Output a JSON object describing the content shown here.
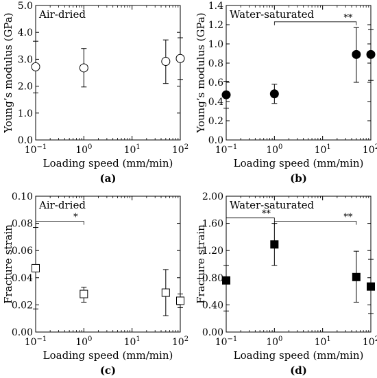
{
  "chart_data": [
    {
      "type": "scatter",
      "panel_label": "(a)",
      "annotation": "Air-dried",
      "xlabel": "Loading speed (mm/min)",
      "ylabel": "Young’s modulus (GPa)",
      "xscale": "log",
      "xlim": [
        0.1,
        100
      ],
      "xticks": [
        {
          "value": 0.1,
          "base": "10",
          "exp": "−1"
        },
        {
          "value": 1,
          "base": "10",
          "exp": "0"
        },
        {
          "value": 10,
          "base": "10",
          "exp": "1"
        },
        {
          "value": 100,
          "base": "10",
          "exp": "2"
        }
      ],
      "ylim": [
        0,
        5
      ],
      "yticks": [
        {
          "value": 0,
          "label": "0.0"
        },
        {
          "value": 1,
          "label": "1.0"
        },
        {
          "value": 2,
          "label": "2.0"
        },
        {
          "value": 3,
          "label": "3.0"
        },
        {
          "value": 4,
          "label": "4.0"
        },
        {
          "value": 5,
          "label": "5.0"
        }
      ],
      "marker": "circle",
      "filled": false,
      "points": [
        {
          "x": 0.1,
          "y": 2.72,
          "low": 1.75,
          "high": 3.67
        },
        {
          "x": 1,
          "y": 2.68,
          "low": 1.97,
          "high": 3.4
        },
        {
          "x": 50,
          "y": 2.92,
          "low": 2.1,
          "high": 3.72
        },
        {
          "x": 100,
          "y": 3.03,
          "low": 2.25,
          "high": 3.8
        }
      ],
      "significance": []
    },
    {
      "type": "scatter",
      "panel_label": "(b)",
      "annotation": "Water-saturated",
      "xlabel": "Loading speed (mm/min)",
      "ylabel": "Young’s modulus (GPa)",
      "xscale": "log",
      "xlim": [
        0.1,
        100
      ],
      "xticks": [
        {
          "value": 0.1,
          "base": "10",
          "exp": "−1"
        },
        {
          "value": 1,
          "base": "10",
          "exp": "0"
        },
        {
          "value": 10,
          "base": "10",
          "exp": "1"
        },
        {
          "value": 100,
          "base": "10",
          "exp": "2"
        }
      ],
      "ylim": [
        0,
        1.4
      ],
      "yticks": [
        {
          "value": 0,
          "label": "0.0"
        },
        {
          "value": 0.2,
          "label": "0.2"
        },
        {
          "value": 0.4,
          "label": "0.4"
        },
        {
          "value": 0.6,
          "label": "0.6"
        },
        {
          "value": 0.8,
          "label": "0.8"
        },
        {
          "value": 1.0,
          "label": "1.0"
        },
        {
          "value": 1.2,
          "label": "1.2"
        },
        {
          "value": 1.4,
          "label": "1.4"
        }
      ],
      "marker": "circle",
      "filled": true,
      "points": [
        {
          "x": 0.1,
          "y": 0.47,
          "low": 0.33,
          "high": 0.61
        },
        {
          "x": 1,
          "y": 0.48,
          "low": 0.38,
          "high": 0.58
        },
        {
          "x": 50,
          "y": 0.89,
          "low": 0.6,
          "high": 1.17
        },
        {
          "x": 100,
          "y": 0.89,
          "low": 0.62,
          "high": 1.15
        }
      ],
      "significance": [
        {
          "from": 1,
          "to": 50,
          "y": 1.23,
          "label": "**"
        }
      ]
    },
    {
      "type": "scatter",
      "panel_label": "(c)",
      "annotation": "Air-dried",
      "xlabel": "Loading speed (mm/min)",
      "ylabel": "Fracture strain",
      "xscale": "log",
      "xlim": [
        0.1,
        100
      ],
      "xticks": [
        {
          "value": 0.1,
          "base": "10",
          "exp": "−1"
        },
        {
          "value": 1,
          "base": "10",
          "exp": "0"
        },
        {
          "value": 10,
          "base": "10",
          "exp": "1"
        },
        {
          "value": 100,
          "base": "10",
          "exp": "2"
        }
      ],
      "ylim": [
        0,
        0.1
      ],
      "yticks": [
        {
          "value": 0,
          "label": "0.00"
        },
        {
          "value": 0.02,
          "label": "0.02"
        },
        {
          "value": 0.04,
          "label": "0.04"
        },
        {
          "value": 0.06,
          "label": "0.06"
        },
        {
          "value": 0.08,
          "label": "0.08"
        },
        {
          "value": 0.1,
          "label": "0.10"
        }
      ],
      "marker": "square",
      "filled": false,
      "points": [
        {
          "x": 0.1,
          "y": 0.047,
          "low": 0.017,
          "high": 0.077
        },
        {
          "x": 1,
          "y": 0.028,
          "low": 0.022,
          "high": 0.033
        },
        {
          "x": 50,
          "y": 0.029,
          "low": 0.012,
          "high": 0.046
        },
        {
          "x": 100,
          "y": 0.023,
          "low": 0.018,
          "high": 0.028
        }
      ],
      "significance": [
        {
          "from": 0.1,
          "to": 1,
          "y": 0.0815,
          "label": "*"
        }
      ]
    },
    {
      "type": "scatter",
      "panel_label": "(d)",
      "annotation": "Water-saturated",
      "xlabel": "Loading speed (mm/min)",
      "ylabel": "Fracture strain",
      "xscale": "log",
      "xlim": [
        0.1,
        100
      ],
      "xticks": [
        {
          "value": 0.1,
          "base": "10",
          "exp": "−1"
        },
        {
          "value": 1,
          "base": "10",
          "exp": "0"
        },
        {
          "value": 10,
          "base": "10",
          "exp": "1"
        },
        {
          "value": 100,
          "base": "10",
          "exp": "2"
        }
      ],
      "ylim": [
        0,
        2
      ],
      "yticks": [
        {
          "value": 0,
          "label": "0.00"
        },
        {
          "value": 0.4,
          "label": "0.40"
        },
        {
          "value": 0.8,
          "label": "0.80"
        },
        {
          "value": 1.2,
          "label": "1.20"
        },
        {
          "value": 1.6,
          "label": "1.60"
        },
        {
          "value": 2.0,
          "label": "2.00"
        }
      ],
      "marker": "square",
      "filled": true,
      "points": [
        {
          "x": 0.1,
          "y": 0.76,
          "low": 0.31,
          "high": 0.98
        },
        {
          "x": 1,
          "y": 1.29,
          "low": 0.98,
          "high": 1.6
        },
        {
          "x": 50,
          "y": 0.81,
          "low": 0.44,
          "high": 1.19
        },
        {
          "x": 100,
          "y": 0.67,
          "low": 0.27,
          "high": 1.07
        }
      ],
      "significance": [
        {
          "from": 0.1,
          "to": 1,
          "y": 1.68,
          "label": "**"
        },
        {
          "from": 1,
          "to": 50,
          "y": 1.63,
          "label": "**"
        }
      ]
    }
  ]
}
